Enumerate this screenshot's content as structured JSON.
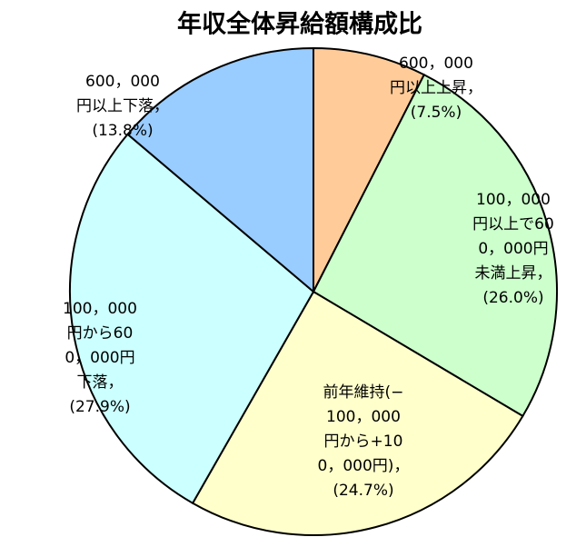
{
  "chart_data": {
    "type": "pie",
    "title": "年収全体昇給額構成比",
    "categories": [
      [
        "600，000",
        "円以上上昇，"
      ],
      [
        "100，000",
        "円以上で60",
        "0，000円",
        "未満上昇，"
      ],
      [
        "前年維持(−",
        "100，000",
        "円から+10",
        "0，000円)，"
      ],
      [
        "100，000",
        "円から60",
        "0，000円",
        "下落，"
      ],
      [
        "600，000",
        "円以上下落，"
      ]
    ],
    "values": [
      7.5,
      26.0,
      24.7,
      27.9,
      13.8
    ],
    "value_labels": [
      "(7.5%)",
      "(26.0%)",
      "(24.7%)",
      "(27.9%)",
      "(13.8%)"
    ],
    "colors": [
      "#ffcc99",
      "#ccffcc",
      "#ffffcc",
      "#ccffff",
      "#99ccff"
    ]
  }
}
